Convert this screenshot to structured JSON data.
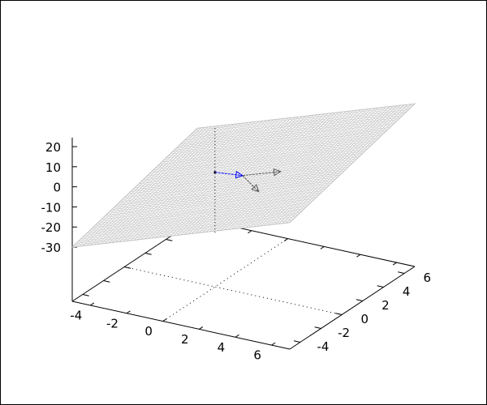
{
  "chart_data": {
    "type": "surface3d",
    "title": "",
    "xlabel": "",
    "ylabel": "",
    "zlabel": "",
    "xrange": [
      -5,
      7
    ],
    "yrange": [
      -5,
      7
    ],
    "zrange": [
      -30,
      25
    ],
    "xticks": [
      "-4",
      "-2",
      "0",
      "2",
      "4",
      "6"
    ],
    "yticks": [
      "-4",
      "-2",
      "0",
      "2",
      "4",
      "6"
    ],
    "zticks": [
      "20",
      "10",
      "0",
      "-10",
      "-20",
      "-30"
    ],
    "surface": {
      "formula": "z = 3x + 1.5y - 7.5",
      "color": "#c0c0c0",
      "style": "mesh"
    },
    "grid": {
      "base_dotted_lines": [
        "x=0",
        "y=0"
      ]
    },
    "vertical_line": {
      "x": 0,
      "y": 0,
      "z_from": -30,
      "z_to": 23,
      "style": "dotted"
    },
    "vectors": [
      {
        "from": [
          0,
          0,
          0
        ],
        "to": [
          1.35,
          0.31,
          0
        ],
        "color": "#0000ff"
      },
      {
        "from": [
          1.35,
          0.31,
          0
        ],
        "to": [
          2.67,
          1.66,
          0
        ],
        "color": "#555555"
      },
      {
        "from": [
          1.35,
          0.31,
          0
        ],
        "to": [
          3.03,
          -1.07,
          0
        ],
        "color": "#555555"
      }
    ]
  }
}
